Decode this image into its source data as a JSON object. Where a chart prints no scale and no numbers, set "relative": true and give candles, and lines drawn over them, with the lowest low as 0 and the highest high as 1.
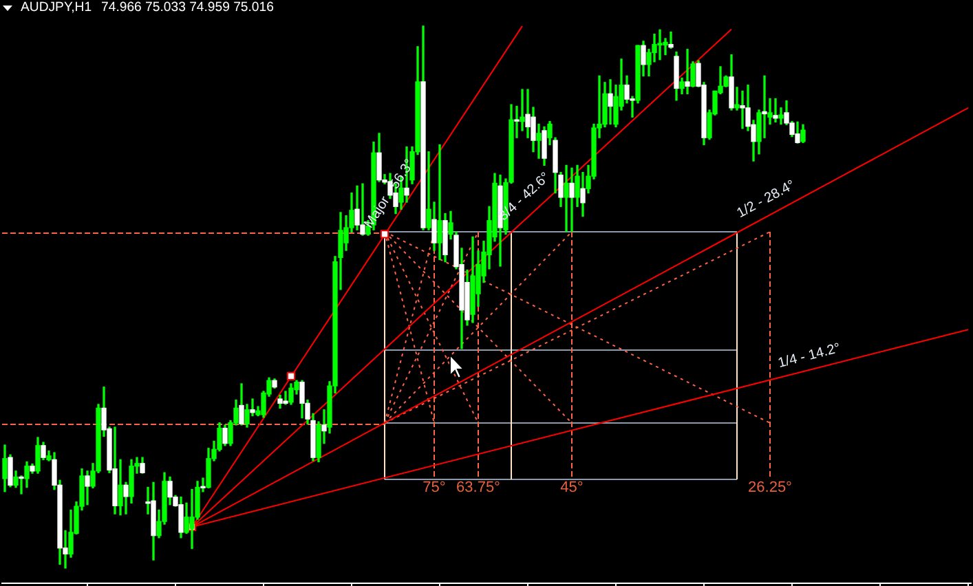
{
  "chart_data": {
    "type": "candlestick",
    "title": "AUDJPY,H1",
    "subtitle": "74.966 75.033 74.959 75.016",
    "relative": true,
    "tick_labels": false,
    "color": "#00ff00",
    "categories": [
      null,
      null,
      null,
      null,
      null,
      null,
      null,
      null,
      null,
      null,
      null,
      null,
      null,
      null,
      null,
      null,
      null,
      null,
      null,
      null,
      null,
      null,
      null,
      null,
      null,
      null,
      null,
      null,
      null,
      null,
      null,
      null,
      null,
      null,
      null,
      null,
      null,
      null,
      null,
      null,
      null,
      null,
      null,
      null,
      null,
      null,
      null,
      null,
      null,
      null,
      null,
      null,
      null,
      null,
      null,
      null,
      null,
      null,
      null,
      null,
      null,
      null,
      null,
      null,
      null,
      null,
      null,
      null,
      null,
      null,
      null,
      null,
      null,
      null,
      null,
      null,
      null,
      null,
      null,
      null,
      null,
      null,
      null,
      null,
      null,
      null,
      null,
      null,
      null,
      null,
      null,
      null,
      null,
      null,
      null,
      null,
      null,
      null,
      null,
      null,
      null,
      null,
      null,
      null,
      null,
      null,
      null,
      null,
      null,
      null,
      null,
      null,
      null,
      null,
      null,
      null,
      null,
      null,
      null,
      null,
      null,
      null,
      null,
      null,
      null,
      null,
      null,
      null,
      null,
      null,
      null,
      null,
      null,
      null,
      null,
      null,
      null,
      null,
      null,
      null,
      null,
      null,
      null,
      null,
      null,
      null,
      null,
      null,
      null,
      null,
      null,
      null,
      null,
      null,
      null,
      null,
      null,
      null,
      null,
      null,
      null,
      null,
      null,
      null,
      null,
      null,
      null,
      null,
      null,
      null,
      null,
      null,
      null,
      null,
      null,
      null
    ],
    "ohlc": [
      [
        0.165,
        0.227,
        0.141,
        0.202
      ],
      [
        0.204,
        0.209,
        0.15,
        0.153
      ],
      [
        0.153,
        0.179,
        0.149,
        0.168
      ],
      [
        0.168,
        0.17,
        0.137,
        0.168
      ],
      [
        0.165,
        0.196,
        0.149,
        0.188
      ],
      [
        0.188,
        0.192,
        0.175,
        0.179
      ],
      [
        0.179,
        0.241,
        0.175,
        0.226
      ],
      [
        0.226,
        0.232,
        0.2,
        0.204
      ],
      [
        0.2,
        0.216,
        0.198,
        0.207
      ],
      [
        0.2,
        0.213,
        0.145,
        0.153
      ],
      [
        0.153,
        0.162,
        0.007,
        0.037
      ],
      [
        0.037,
        0.069,
        0,
        0.026
      ],
      [
        0.026,
        0.107,
        0.02,
        0.066
      ],
      [
        0.064,
        0.122,
        0.063,
        0.114
      ],
      [
        0.114,
        0.183,
        0.107,
        0.17
      ],
      [
        0.17,
        0.179,
        0.117,
        0.151
      ],
      [
        0.151,
        0.193,
        0.148,
        0.179
      ],
      [
        0.179,
        0.302,
        0.176,
        0.295
      ],
      [
        0.295,
        0.334,
        0.243,
        0.255
      ],
      [
        0.257,
        0.26,
        0.176,
        0.181
      ],
      [
        0.183,
        0.26,
        0.1,
        0.115
      ],
      [
        0.115,
        0.2,
        0.098,
        0.153
      ],
      [
        0.153,
        0.158,
        0.1,
        0.132
      ],
      [
        0.132,
        0.2,
        0.12,
        0.188
      ],
      [
        0.188,
        0.204,
        0.175,
        0.193
      ],
      [
        0.193,
        0.204,
        0.175,
        0.176
      ],
      [
        0.122,
        0.149,
        0.1,
        0.122
      ],
      [
        0.124,
        0.158,
        0.015,
        0.06
      ],
      [
        0.06,
        0.107,
        0.056,
        0.086
      ],
      [
        0.086,
        0.176,
        0.081,
        0.16
      ],
      [
        0.16,
        0.168,
        0.117,
        0.131
      ],
      [
        0.131,
        0.134,
        0.114,
        0.115
      ],
      [
        0.117,
        0.131,
        0.056,
        0.066
      ],
      [
        0.066,
        0.12,
        0.064,
        0.094
      ],
      [
        0.073,
        0.145,
        0.036,
        0.094
      ],
      [
        0.094,
        0.16,
        0.09,
        0.149
      ],
      [
        0.149,
        0.166,
        0.141,
        0.148
      ],
      [
        0.149,
        0.221,
        0.148,
        0.202
      ],
      [
        0.202,
        0.234,
        0.198,
        0.219
      ],
      [
        0.219,
        0.268,
        0.216,
        0.258
      ],
      [
        0.258,
        0.264,
        0.226,
        0.23
      ],
      [
        0.23,
        0.272,
        0.226,
        0.268
      ],
      [
        0.268,
        0.31,
        0.264,
        0.295
      ],
      [
        0.3,
        0.34,
        0.264,
        0.266
      ],
      [
        0.266,
        0.302,
        0.26,
        0.292
      ],
      [
        0.292,
        0.312,
        0.281,
        0.287
      ],
      [
        0.283,
        0.298,
        0.281,
        0.29
      ],
      [
        0.283,
        0.326,
        0.278,
        0.323
      ],
      [
        0.321,
        0.351,
        0.317,
        0.346
      ],
      [
        0.346,
        0.349,
        0.332,
        0.334
      ],
      [
        0.312,
        0.319,
        0.295,
        0.304
      ],
      [
        0.308,
        0.326,
        0.302,
        0.304
      ],
      [
        0.306,
        0.34,
        0.302,
        0.332
      ],
      [
        0.329,
        0.346,
        0.321,
        0.343
      ],
      [
        0.343,
        0.346,
        0.277,
        0.304
      ],
      [
        0.304,
        0.31,
        0.266,
        0.275
      ],
      [
        0.272,
        0.285,
        0.198,
        0.204
      ],
      [
        0.204,
        0.27,
        0.196,
        0.264
      ],
      [
        0.264,
        0.292,
        0.23,
        0.253
      ],
      [
        0.26,
        0.344,
        0.249,
        0.336
      ],
      [
        0.336,
        0.575,
        0.323,
        0.565
      ],
      [
        0.573,
        0.656,
        0.514,
        0.623
      ],
      [
        0.6,
        0.65,
        0.586,
        0.628
      ],
      [
        0.628,
        0.692,
        0.62,
        0.66
      ],
      [
        0.662,
        0.705,
        0.624,
        0.633
      ],
      [
        0.633,
        0.709,
        0.614,
        0.616
      ],
      [
        0.616,
        0.641,
        0.614,
        0.631
      ],
      [
        0.633,
        0.786,
        0.624,
        0.766
      ],
      [
        0.766,
        0.802,
        0.713,
        0.716
      ],
      [
        0.716,
        0.726,
        0.709,
        0.712
      ],
      [
        0.713,
        0.728,
        0.682,
        0.688
      ],
      [
        0.692,
        0.709,
        0.654,
        0.667
      ],
      [
        0.675,
        0.722,
        0.662,
        0.701
      ],
      [
        0.701,
        0.777,
        0.675,
        0.688
      ],
      [
        0.716,
        0.777,
        0.709,
        0.768
      ],
      [
        0.768,
        0.962,
        0.763,
        0.897
      ],
      [
        0.897,
        1,
        0.624,
        0.628
      ],
      [
        0.628,
        0.768,
        0.624,
        0.662
      ],
      [
        0.643,
        0.675,
        0.586,
        0.6
      ],
      [
        0.6,
        0.781,
        0.569,
        0.641
      ],
      [
        0.641,
        0.654,
        0.565,
        0.578
      ],
      [
        0.616,
        0.658,
        0.607,
        0.637
      ],
      [
        0.614,
        0.62,
        0.552,
        0.556
      ],
      [
        0.56,
        0.59,
        0.405,
        0.476
      ],
      [
        0.527,
        0.55,
        0.448,
        0.458
      ],
      [
        0.468,
        0.611,
        0.453,
        0.539
      ],
      [
        0.506,
        0.585,
        0.483,
        0.56
      ],
      [
        0.539,
        0.603,
        0.527,
        0.583
      ],
      [
        0.578,
        0.667,
        0.552,
        0.641
      ],
      [
        0.611,
        0.728,
        0.603,
        0.71
      ],
      [
        0.705,
        0.725,
        0.557,
        0.628
      ],
      [
        0.624,
        0.718,
        0.616,
        0.711
      ],
      [
        0.712,
        0.855,
        0.71,
        0.827
      ],
      [
        0.827,
        0.852,
        0.794,
        0.827
      ],
      [
        0.824,
        0.883,
        0.807,
        0.832
      ],
      [
        0.837,
        0.883,
        0.794,
        0.814
      ],
      [
        0.832,
        0.85,
        0.768,
        0.789
      ],
      [
        0.789,
        0.819,
        0.756,
        0.802
      ],
      [
        0.807,
        0.814,
        0.743,
        0.756
      ],
      [
        0.794,
        0.824,
        0.781,
        0.819
      ],
      [
        0.789,
        0.794,
        0.692,
        0.73
      ],
      [
        0.725,
        0.73,
        0.667,
        0.684
      ],
      [
        0.684,
        0.743,
        0.621,
        0.71
      ],
      [
        0.71,
        0.738,
        0.621,
        0.684
      ],
      [
        0.684,
        0.743,
        0.667,
        0.723
      ],
      [
        0.7,
        0.73,
        0.649,
        0.674
      ],
      [
        0.7,
        0.743,
        0.692,
        0.723
      ],
      [
        0.723,
        0.819,
        0.718,
        0.812
      ],
      [
        0.812,
        0.908,
        0.794,
        0.819
      ],
      [
        0.819,
        0.896,
        0.814,
        0.875
      ],
      [
        0.875,
        0.901,
        0.819,
        0.852
      ],
      [
        0.819,
        0.891,
        0.814,
        0.87
      ],
      [
        0.852,
        0.939,
        0.845,
        0.891
      ],
      [
        0.891,
        0.908,
        0.858,
        0.865
      ],
      [
        0.865,
        0.87,
        0.832,
        0.863
      ],
      [
        0.863,
        0.964,
        0.858,
        0.964
      ],
      [
        0.964,
        0.972,
        0.908,
        0.929
      ],
      [
        0.929,
        0.957,
        0.908,
        0.951
      ],
      [
        0.951,
        0.985,
        0.934,
        0.966
      ],
      [
        0.965,
        0.993,
        0.938,
        0.968
      ],
      [
        0.965,
        0.977,
        0.947,
        0.97
      ],
      [
        0.966,
        0.989,
        0.959,
        0.961
      ],
      [
        0.944,
        0.952,
        0.863,
        0.885
      ],
      [
        0.885,
        0.904,
        0.875,
        0.897
      ],
      [
        0.897,
        0.957,
        0.875,
        0.889
      ],
      [
        0.889,
        0.934,
        0.888,
        0.93
      ],
      [
        0.931,
        0.936,
        0.888,
        0.889
      ],
      [
        0.891,
        0.896,
        0.781,
        0.794
      ],
      [
        0.794,
        0.845,
        0.791,
        0.84
      ],
      [
        0.838,
        0.88,
        0.836,
        0.88
      ],
      [
        0.877,
        0.925,
        0.875,
        0.889
      ],
      [
        0.889,
        0.908,
        0.888,
        0.906
      ],
      [
        0.906,
        0.947,
        0.845,
        0.849
      ],
      [
        0.849,
        0.887,
        0.845,
        0.855
      ],
      [
        0.853,
        0.88,
        0.811,
        0.849
      ],
      [
        0.849,
        0.891,
        0.807,
        0.815
      ],
      [
        0.818,
        0.826,
        0.751,
        0.787
      ],
      [
        0.787,
        0.845,
        0.764,
        0.84
      ],
      [
        0.842,
        0.908,
        0.794,
        0.838
      ],
      [
        0.832,
        0.866,
        0.819,
        0.84
      ],
      [
        0.835,
        0.866,
        0.823,
        0.83
      ],
      [
        0.83,
        0.849,
        0.819,
        0.836
      ],
      [
        0.84,
        0.862,
        0.818,
        0.821
      ],
      [
        0.821,
        0.824,
        0.796,
        0.8
      ],
      [
        0.801,
        0.823,
        0.784,
        0.785
      ],
      [
        0.787,
        0.818,
        0.785,
        0.808
      ],
      null,
      null,
      null,
      null,
      null,
      null,
      null,
      null,
      null,
      null,
      null,
      null,
      null,
      null,
      null,
      null,
      null,
      null,
      null,
      null,
      null,
      null,
      null,
      null,
      null,
      null,
      null,
      null,
      null,
      null
    ],
    "colors": [
      "#00ff00",
      "#ffffff",
      "#00ff00",
      "#ffffff",
      "#00ff00",
      "#ffffff",
      "#00ff00",
      "#ffffff",
      "#00ff00",
      "#ffffff",
      "#ffffff",
      "#ffffff",
      "#00ff00",
      "#00ff00",
      "#00ff00",
      "#ffffff",
      "#00ff00",
      "#00ff00",
      "#ffffff",
      "#ffffff",
      "#ffffff",
      "#00ff00",
      "#ffffff",
      "#00ff00",
      "#00ff00",
      "#ffffff",
      "#ffffff",
      "#ffffff",
      "#00ff00",
      "#00ff00",
      "#ffffff",
      "#ffffff",
      "#ffffff",
      "#00ff00",
      "#00ff00",
      "#00ff00",
      "#ffffff",
      "#00ff00",
      "#00ff00",
      "#00ff00",
      "#ffffff",
      "#00ff00",
      "#00ff00",
      "#ffffff",
      "#00ff00",
      "#ffffff",
      "#00ff00",
      "#00ff00",
      "#00ff00",
      "#ffffff",
      "#ffffff",
      "#ffffff",
      "#00ff00",
      "#00ff00",
      "#ffffff",
      "#ffffff",
      "#ffffff",
      "#00ff00",
      "#ffffff",
      "#00ff00",
      "#00ff00",
      "#00ff00",
      "#00ff00",
      "#00ff00",
      "#ffffff",
      "#ffffff",
      "#00ff00",
      "#00ff00",
      "#ffffff",
      "#ffffff",
      "#ffffff",
      "#ffffff",
      "#00ff00",
      "#ffffff",
      "#00ff00",
      "#00ff00",
      "#ffffff",
      "#00ff00",
      "#ffffff",
      "#00ff00",
      "#ffffff",
      "#00ff00",
      "#ffffff",
      "#ffffff",
      "#ffffff",
      "#00ff00",
      "#00ff00",
      "#00ff00",
      "#00ff00",
      "#00ff00",
      "#ffffff",
      "#00ff00",
      "#00ff00",
      "#ffffff",
      "#00ff00",
      "#ffffff",
      "#ffffff",
      "#00ff00",
      "#ffffff",
      "#00ff00",
      "#ffffff",
      "#ffffff",
      "#00ff00",
      "#ffffff",
      "#00ff00",
      "#ffffff",
      "#00ff00",
      "#00ff00",
      "#00ff00",
      "#00ff00",
      "#ffffff",
      "#00ff00",
      "#00ff00",
      "#ffffff",
      "#ffffff",
      "#00ff00",
      "#ffffff",
      "#00ff00",
      "#00ff00",
      "#00ff00",
      "#00ff00",
      "#ffffff",
      "#ffffff",
      "#00ff00",
      "#ffffff",
      "#00ff00",
      "#ffffff",
      "#ffffff",
      "#00ff00",
      "#00ff00",
      "#00ff00",
      "#00ff00",
      "#ffffff",
      "#00ff00",
      "#ffffff",
      "#ffffff",
      "#ffffff",
      "#00ff00",
      "#ffffff",
      "#00ff00",
      "#ffffff",
      "#00ff00",
      "#ffffff",
      "#ffffff",
      "#ffffff",
      "#00ff00",
      null,
      null,
      null,
      null,
      null,
      null,
      null,
      null,
      null,
      null,
      null,
      null,
      null,
      null,
      null,
      null,
      null,
      null,
      null,
      null,
      null,
      null,
      null,
      null,
      null,
      null,
      null,
      null,
      null,
      null
    ],
    "series": [
      {
        "type": "line",
        "name": "Major - 56.3°",
        "color": "#ff0000",
        "values": [
          null,
          null,
          null,
          null,
          null,
          null,
          null,
          null,
          null,
          null,
          null,
          null,
          null,
          null,
          null,
          null,
          null,
          null,
          null,
          null,
          null,
          null,
          null,
          null,
          null,
          null,
          null,
          null,
          null,
          null,
          null,
          null,
          null,
          null,
          0.076,
          null,
          null,
          null,
          null,
          null,
          null,
          null,
          null,
          null,
          null,
          null,
          null,
          null,
          null,
          null,
          null,
          null,
          null,
          null,
          null,
          null,
          null,
          null,
          null,
          null,
          null,
          null,
          null,
          null,
          null,
          null,
          null,
          null,
          null,
          null,
          null,
          null,
          null,
          null,
          null,
          null,
          null,
          null,
          null,
          null,
          null,
          null,
          null,
          null,
          null,
          null,
          null,
          null,
          null,
          null,
          null,
          null,
          null,
          null,
          1,
          null,
          null,
          null,
          null,
          null,
          null,
          null,
          null,
          null,
          null,
          null,
          null,
          null,
          null,
          null,
          null,
          null,
          null,
          null,
          null,
          null,
          null,
          null,
          null,
          null,
          null,
          null,
          null,
          null,
          null,
          null,
          null,
          null,
          null,
          null,
          null,
          null,
          null,
          null,
          null,
          null,
          null,
          null,
          null,
          null,
          null,
          null,
          null,
          null,
          null,
          null,
          null,
          null,
          null,
          null,
          null,
          null,
          null,
          null,
          null,
          null,
          null,
          null,
          null,
          null,
          null,
          null,
          null,
          null,
          null,
          null,
          null,
          null,
          null,
          null,
          null,
          null,
          null,
          null,
          null,
          null
        ]
      },
      {
        "type": "line",
        "name": "3/4 - 42.6°",
        "color": "#ff0000",
        "values": [
          null,
          null,
          null,
          null,
          null,
          null,
          null,
          null,
          null,
          null,
          null,
          null,
          null,
          null,
          null,
          null,
          null,
          null,
          null,
          null,
          null,
          null,
          null,
          null,
          null,
          null,
          null,
          null,
          null,
          null,
          null,
          null,
          null,
          null,
          0.076,
          null,
          null,
          null,
          null,
          null,
          null,
          null,
          null,
          null,
          null,
          null,
          null,
          null,
          null,
          null,
          null,
          null,
          null,
          null,
          null,
          null,
          null,
          null,
          null,
          null,
          null,
          null,
          null,
          null,
          null,
          null,
          null,
          null,
          null,
          null,
          null,
          null,
          null,
          null,
          null,
          null,
          null,
          null,
          null,
          null,
          null,
          null,
          null,
          null,
          null,
          null,
          null,
          null,
          null,
          null,
          null,
          null,
          null,
          null,
          null,
          null,
          null,
          null,
          null,
          null,
          null,
          null,
          null,
          null,
          null,
          null,
          null,
          null,
          null,
          null,
          null,
          null,
          null,
          null,
          null,
          null,
          null,
          null,
          null,
          null,
          null,
          null,
          null,
          null,
          null,
          null,
          null,
          null,
          null,
          null,
          null,
          null,
          0.994,
          null,
          null,
          null,
          null,
          null,
          null,
          null,
          null,
          null,
          null,
          null,
          null,
          null,
          null,
          null,
          null,
          null,
          null,
          null,
          null,
          null,
          null,
          null,
          null,
          null,
          null,
          null,
          null,
          null,
          null,
          null,
          null,
          null,
          null,
          null,
          null,
          null,
          null,
          null,
          null,
          null,
          null,
          null
        ]
      },
      {
        "type": "line",
        "name": "1/2 - 28.4°",
        "color": "#ff0000",
        "values": [
          null,
          null,
          null,
          null,
          null,
          null,
          null,
          null,
          null,
          null,
          null,
          null,
          null,
          null,
          null,
          null,
          null,
          null,
          null,
          null,
          null,
          null,
          null,
          null,
          null,
          null,
          null,
          null,
          null,
          null,
          null,
          null,
          null,
          null,
          0.076,
          null,
          null,
          null,
          null,
          null,
          null,
          null,
          null,
          null,
          null,
          null,
          null,
          null,
          null,
          null,
          null,
          null,
          null,
          null,
          null,
          null,
          null,
          null,
          null,
          null,
          null,
          null,
          null,
          null,
          null,
          null,
          null,
          null,
          null,
          null,
          null,
          null,
          null,
          null,
          null,
          null,
          null,
          null,
          null,
          null,
          null,
          null,
          null,
          null,
          null,
          null,
          null,
          null,
          null,
          null,
          null,
          null,
          null,
          null,
          null,
          null,
          null,
          null,
          null,
          null,
          null,
          null,
          null,
          null,
          null,
          null,
          null,
          null,
          null,
          null,
          null,
          null,
          null,
          null,
          null,
          null,
          null,
          null,
          null,
          null,
          null,
          null,
          null,
          null,
          null,
          null,
          null,
          null,
          null,
          null,
          null,
          null,
          null,
          null,
          null,
          null,
          null,
          null,
          null,
          null,
          null,
          null,
          null,
          null,
          null,
          null,
          null,
          null,
          null,
          null,
          null,
          null,
          null,
          null,
          null,
          null,
          null,
          null,
          null,
          null,
          null,
          null,
          null,
          null,
          null,
          null,
          null,
          null,
          null,
          null,
          null,
          null,
          null,
          null,
          null,
          0.849
        ]
      },
      {
        "type": "line",
        "name": "1/4 - 14.2°",
        "color": "#ff0000",
        "values": [
          null,
          null,
          null,
          null,
          null,
          null,
          null,
          null,
          null,
          null,
          null,
          null,
          null,
          null,
          null,
          null,
          null,
          null,
          null,
          null,
          null,
          null,
          null,
          null,
          null,
          null,
          null,
          null,
          null,
          null,
          null,
          null,
          null,
          null,
          0.076,
          null,
          null,
          null,
          null,
          null,
          null,
          null,
          null,
          null,
          null,
          null,
          null,
          null,
          null,
          null,
          null,
          null,
          null,
          null,
          null,
          null,
          null,
          null,
          null,
          null,
          null,
          null,
          null,
          null,
          null,
          null,
          null,
          null,
          null,
          null,
          null,
          null,
          null,
          null,
          null,
          null,
          null,
          null,
          null,
          null,
          null,
          null,
          null,
          null,
          null,
          null,
          null,
          null,
          null,
          null,
          null,
          null,
          null,
          null,
          null,
          null,
          null,
          null,
          null,
          null,
          null,
          null,
          null,
          null,
          null,
          null,
          null,
          null,
          null,
          null,
          null,
          null,
          null,
          null,
          null,
          null,
          null,
          null,
          null,
          null,
          null,
          null,
          null,
          null,
          null,
          null,
          null,
          null,
          null,
          null,
          null,
          null,
          null,
          null,
          null,
          null,
          null,
          null,
          null,
          null,
          null,
          null,
          null,
          null,
          null,
          null,
          null,
          null,
          null,
          null,
          null,
          null,
          null,
          null,
          null,
          null,
          null,
          null,
          null,
          null,
          null,
          null,
          null,
          null,
          null,
          null,
          null,
          null,
          null,
          null,
          null,
          null,
          null,
          null,
          null,
          0.44
        ]
      },
      {
        "type": "scatter",
        "color": "#ffffff",
        "marker": "square",
        "values": [
          null,
          null,
          null,
          null,
          null,
          null,
          null,
          null,
          null,
          null,
          null,
          null,
          null,
          null,
          null,
          null,
          null,
          null,
          null,
          null,
          null,
          null,
          null,
          null,
          null,
          null,
          null,
          null,
          null,
          null,
          null,
          null,
          null,
          null,
          0.076,
          null,
          null,
          null,
          null,
          null,
          null,
          null,
          null,
          null,
          null,
          null,
          null,
          null,
          null,
          null,
          null,
          null,
          0.354,
          null,
          null,
          null,
          null,
          null,
          null,
          null,
          null,
          null,
          null,
          null,
          null,
          null,
          null,
          null,
          null,
          0.616,
          null,
          null,
          null,
          null,
          null,
          null,
          null,
          null,
          null,
          null,
          null,
          null,
          null,
          null,
          null,
          null,
          null,
          null,
          null,
          null,
          null,
          null,
          null,
          null,
          null,
          null,
          null,
          null,
          null,
          null,
          null,
          null,
          null,
          null,
          null,
          null,
          null,
          null,
          null,
          null,
          null,
          null,
          null,
          null,
          null,
          null,
          null,
          null,
          null,
          null,
          null,
          null,
          null,
          null,
          null,
          null,
          null,
          null,
          null,
          null,
          null,
          null,
          null,
          null,
          null,
          null,
          null,
          null,
          null,
          null,
          null,
          null,
          null,
          null,
          null,
          null,
          null,
          null,
          null,
          null,
          null,
          null,
          null,
          null,
          null,
          null,
          null,
          null,
          null,
          null,
          null,
          null,
          null,
          null,
          null,
          null,
          null,
          null,
          null,
          null,
          null,
          null,
          null,
          null,
          null,
          null
        ]
      }
    ],
    "ref_lines": [
      {
        "axis": "y",
        "value": 0.62,
        "color": "#ff6347",
        "line_style": "dashed"
      },
      {
        "axis": "y",
        "value": 0.266,
        "color": "#ff6347",
        "line_style": "dashed"
      }
    ],
    "annotations": [
      "75°",
      "63.75°",
      "45°",
      "26.25°"
    ]
  }
}
